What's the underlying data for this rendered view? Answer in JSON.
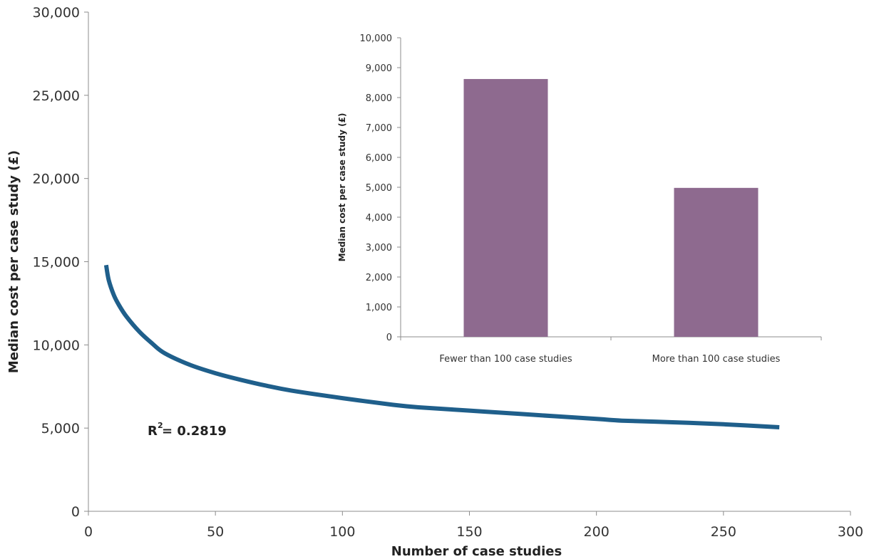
{
  "chart_data": [
    {
      "type": "line",
      "xlabel": "Number of case studies",
      "ylabel": "Median cost per case study (£)",
      "xlim": [
        0,
        300
      ],
      "ylim": [
        0,
        30000
      ],
      "x_ticks": [
        "0",
        "50",
        "100",
        "150",
        "200",
        "250",
        "300"
      ],
      "y_ticks": [
        "0",
        "5,000",
        "10,000",
        "15,000",
        "20,000",
        "25,000",
        "30,000"
      ],
      "series": [
        {
          "color": "#1f5f8b",
          "x": [
            7,
            8,
            10,
            12,
            15,
            20,
            25,
            30,
            40,
            50,
            60,
            70,
            80,
            100,
            120,
            130,
            150,
            170,
            200,
            210,
            230,
            250,
            272
          ],
          "y": [
            14800,
            13900,
            13000,
            12400,
            11700,
            10800,
            10100,
            9500,
            8800,
            8300,
            7900,
            7550,
            7250,
            6800,
            6400,
            6250,
            6050,
            5850,
            5550,
            5450,
            5350,
            5230,
            5050
          ]
        }
      ],
      "annotation": {
        "main": "R",
        "superscript": "2",
        "rest": " = 0.2819"
      },
      "grid": false
    },
    {
      "type": "bar",
      "categories": [
        "Fewer than 100 case studies",
        "More than 100 case studies"
      ],
      "values": [
        8620,
        4980
      ],
      "ylabel": "Median cost per case study (£)",
      "ylim": [
        0,
        10000
      ],
      "y_ticks": [
        "0",
        "1,000",
        "2,000",
        "3,000",
        "4,000",
        "5,000",
        "6,000",
        "7,000",
        "8,000",
        "9,000",
        "10,000"
      ],
      "bar_color": "#8e6a8f",
      "grid": false
    }
  ]
}
